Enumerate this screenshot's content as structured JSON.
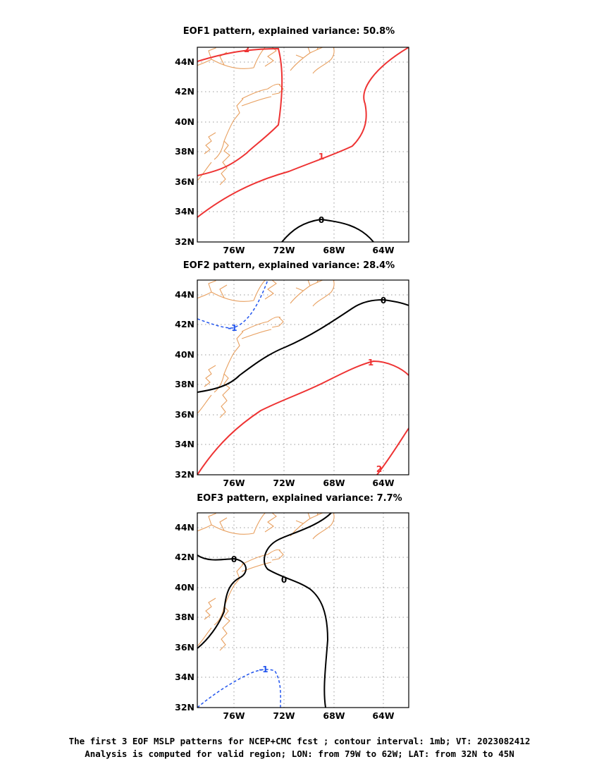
{
  "panels": [
    {
      "title": "EOF1 pattern, explained variance: 50.8%",
      "contours": [
        {
          "label": "2",
          "color": "#ee3333",
          "dashed": false
        },
        {
          "label": "1",
          "color": "#ee3333",
          "dashed": false
        },
        {
          "label": "0",
          "color": "#000000",
          "dashed": false
        }
      ]
    },
    {
      "title": "EOF2 pattern, explained variance: 28.4%",
      "contours": [
        {
          "label": "-1",
          "color": "#2255ee",
          "dashed": true
        },
        {
          "label": "0",
          "color": "#000000",
          "dashed": false
        },
        {
          "label": "1",
          "color": "#ee3333",
          "dashed": false
        },
        {
          "label": "2",
          "color": "#ee3333",
          "dashed": false
        }
      ]
    },
    {
      "title": "EOF3 pattern, explained variance: 7.7%",
      "contours": [
        {
          "label": "0",
          "color": "#000000",
          "dashed": false
        },
        {
          "label": "0",
          "color": "#000000",
          "dashed": false
        },
        {
          "label": "-1",
          "color": "#2255ee",
          "dashed": true
        }
      ]
    }
  ],
  "axes": {
    "lat_ticks": [
      "44N",
      "42N",
      "40N",
      "38N",
      "36N",
      "34N",
      "32N"
    ],
    "lon_ticks": [
      "76W",
      "72W",
      "68W",
      "64W"
    ],
    "lon_range": [
      -79,
      -62
    ],
    "lat_range": [
      32,
      45
    ],
    "grid": "dotted"
  },
  "colors": {
    "coastline": "#e8a060",
    "positive_contour": "#ee3333",
    "zero_contour": "#000000",
    "negative_contour": "#2255ee",
    "grid": "#999999"
  },
  "caption": {
    "line1": "The first 3 EOF MSLP patterns for NCEP+CMC fcst ; contour interval: 1mb; VT: 2023082412",
    "line2": "Analysis is computed for valid region; LON: from 79W to 62W; LAT: from 32N to 45N"
  }
}
